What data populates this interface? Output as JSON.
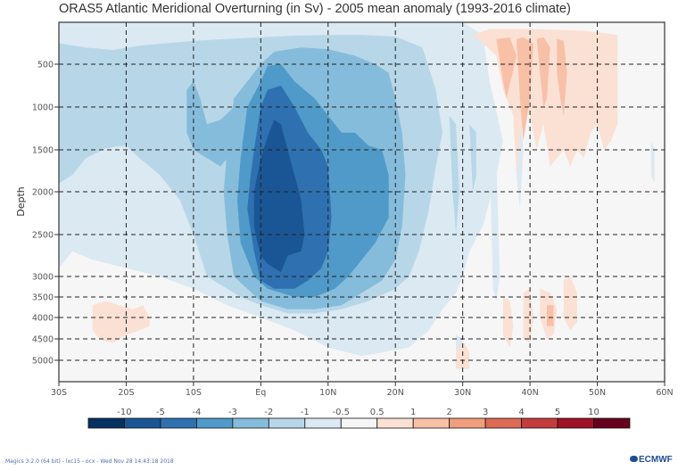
{
  "chart_data": {
    "type": "heatmap",
    "subtype": "filled-contour",
    "title": "ORAS5 Atlantic Meridional Overturning (in Sv) - 2005 mean anomaly (1993-2016 climate)",
    "xlabel": "",
    "ylabel": "Depth",
    "x_ticks": [
      "30S",
      "20S",
      "10S",
      "Eq",
      "10N",
      "20N",
      "30N",
      "40N",
      "50N",
      "60N"
    ],
    "x_tick_values": [
      -30,
      -20,
      -10,
      0,
      10,
      20,
      30,
      40,
      50,
      60
    ],
    "xlim": [
      -30,
      60
    ],
    "y_ticks": [
      "500",
      "1000",
      "1500",
      "2000",
      "2500",
      "3000",
      "3500",
      "4000",
      "4500",
      "5000"
    ],
    "y_tick_values": [
      500,
      1000,
      1500,
      2000,
      2500,
      3000,
      3500,
      4000,
      4500,
      5000
    ],
    "ylim": [
      0,
      5500
    ],
    "y_inverted": true,
    "grid": true,
    "grid_style": "dashed",
    "colorbar": {
      "placement": "bottom",
      "levels": [
        -10,
        -5,
        -4,
        -3,
        -2,
        -1,
        -0.5,
        0.5,
        1,
        2,
        3,
        4,
        5,
        10
      ],
      "labels": [
        "-10",
        "-5",
        "-4",
        "-3",
        "-2",
        "-1",
        "-0.5",
        "0.5",
        "1",
        "2",
        "3",
        "4",
        "5",
        "10"
      ],
      "colors": [
        "#053061",
        "#1a5695",
        "#2f70b0",
        "#4f9ac8",
        "#86bcdb",
        "#b7d7e8",
        "#dbe9f2",
        "#f6f6f6",
        "#fbe0d4",
        "#f8c0a6",
        "#f09e7d",
        "#db6b55",
        "#c33c3c",
        "#9f1127",
        "#67001f"
      ]
    },
    "regions": [
      {
        "name": "background",
        "level_index": 7,
        "description": "near-zero anomaly (-0.5 to 0.5)"
      },
      {
        "name": "upper-cell-weak",
        "level_index": 6,
        "lat_range": [
          -30,
          36
        ],
        "depth_range": [
          0,
          3200
        ]
      },
      {
        "name": "upper-cell-moderate",
        "level_index": 5,
        "lat_range": [
          -30,
          26
        ],
        "depth_range": [
          300,
          2900
        ]
      },
      {
        "name": "core-outer",
        "level_index": 4,
        "lat_range": [
          -12,
          20
        ],
        "depth_range": [
          400,
          3400
        ]
      },
      {
        "name": "core-mid",
        "level_index": 3,
        "lat_range": [
          -4,
          18
        ],
        "depth_range": [
          600,
          3100
        ]
      },
      {
        "name": "core-inner",
        "level_index": 2,
        "lat_range": [
          -2,
          9
        ],
        "depth_range": [
          700,
          2900
        ]
      },
      {
        "name": "core-max",
        "level_index": 1,
        "lat_range": [
          -1,
          6
        ],
        "depth_range": [
          1100,
          2700
        ]
      },
      {
        "name": "south-deep-positive",
        "level_index": 8,
        "lat_range": [
          -25,
          -16
        ],
        "depth_range": [
          3500,
          4700
        ]
      },
      {
        "name": "north-upper-positive",
        "level_index": 8,
        "lat_range": [
          33,
          53
        ],
        "depth_range": [
          100,
          1500
        ]
      },
      {
        "name": "north-upper-positive-strong",
        "level_index": 9,
        "lat_range": [
          35,
          48
        ],
        "depth_range": [
          100,
          1000
        ]
      },
      {
        "name": "north-deep-positive",
        "level_index": 8,
        "lat_range": [
          40,
          48
        ],
        "depth_range": [
          3300,
          4900
        ]
      },
      {
        "name": "deep-30N-positive",
        "level_index": 8,
        "lat_range": [
          29,
          32
        ],
        "depth_range": [
          4700,
          5200
        ]
      }
    ]
  },
  "footer": {
    "text": "Magics 3.2.0 (64 bit) - lxc15 - ocx - Wed Nov 28 14:43:18 2018",
    "logo": "ECMWF"
  }
}
